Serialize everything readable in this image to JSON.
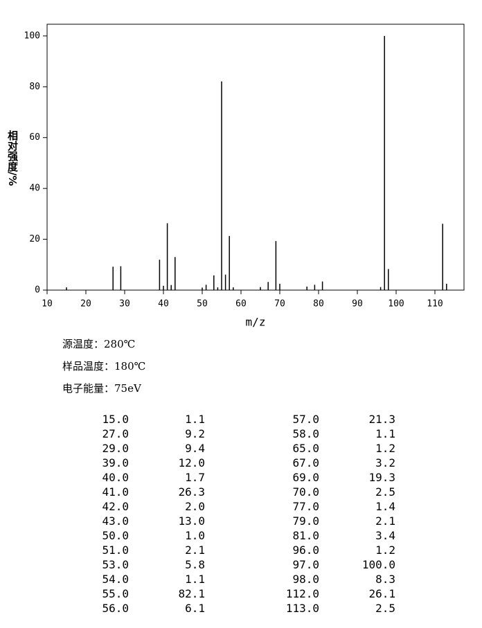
{
  "chart_data": {
    "type": "bar",
    "ylabel": "相对强度/%",
    "xlabel": "m/z",
    "x": [
      15,
      27,
      29,
      39,
      40,
      41,
      42,
      43,
      50,
      51,
      53,
      54,
      55,
      56,
      57,
      58,
      65,
      67,
      69,
      70,
      77,
      79,
      81,
      96,
      97,
      98,
      112,
      113
    ],
    "values": [
      1.1,
      9.2,
      9.4,
      12.0,
      1.7,
      26.3,
      2.0,
      13.0,
      1.0,
      2.1,
      5.8,
      1.1,
      82.1,
      6.1,
      21.3,
      1.1,
      1.2,
      3.2,
      19.3,
      2.5,
      1.4,
      2.1,
      3.4,
      1.2,
      100.0,
      8.3,
      26.1,
      2.5
    ],
    "color": "#000000",
    "xlim": [
      10,
      117.5
    ],
    "xticks": [
      10,
      20,
      30,
      40,
      50,
      60,
      70,
      80,
      90,
      100,
      110
    ],
    "ylim": [
      0,
      104.6
    ],
    "yticks": [
      0,
      20,
      40,
      60,
      80,
      100
    ]
  },
  "info": [
    "源温度：280℃",
    "样品温度：180℃",
    "电子能量：75eV"
  ],
  "table": {
    "rows": [
      [
        "15.0",
        "1.1",
        "57.0",
        "21.3"
      ],
      [
        "27.0",
        "9.2",
        "58.0",
        "1.1"
      ],
      [
        "29.0",
        "9.4",
        "65.0",
        "1.2"
      ],
      [
        "39.0",
        "12.0",
        "67.0",
        "3.2"
      ],
      [
        "40.0",
        "1.7",
        "69.0",
        "19.3"
      ],
      [
        "41.0",
        "26.3",
        "70.0",
        "2.5"
      ],
      [
        "42.0",
        "2.0",
        "77.0",
        "1.4"
      ],
      [
        "43.0",
        "13.0",
        "79.0",
        "2.1"
      ],
      [
        "50.0",
        "1.0",
        "81.0",
        "3.4"
      ],
      [
        "51.0",
        "2.1",
        "96.0",
        "1.2"
      ],
      [
        "53.0",
        "5.8",
        "97.0",
        "100.0"
      ],
      [
        "54.0",
        "1.1",
        "98.0",
        "8.3"
      ],
      [
        "55.0",
        "82.1",
        "112.0",
        "26.1"
      ],
      [
        "56.0",
        "6.1",
        "113.0",
        "2.5"
      ]
    ]
  }
}
